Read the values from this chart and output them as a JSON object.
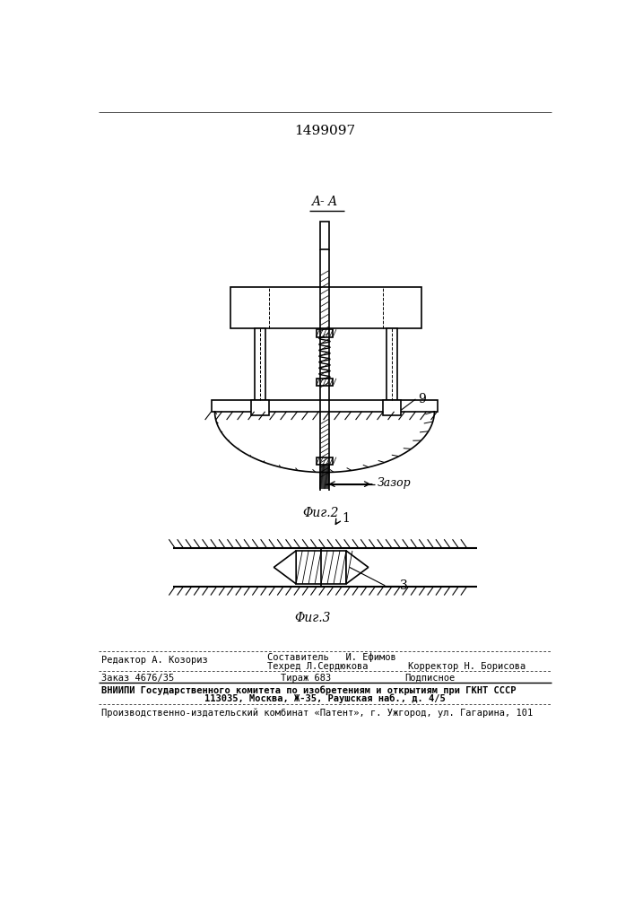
{
  "title": "1499097",
  "fig2_label": "Φиг.2",
  "fig3_label": "Φиг.3",
  "aa_label": "A- A",
  "zazor_label": "Зазор",
  "label_9": "9",
  "label_3": "3",
  "label_1": "1",
  "bg_color": "#ffffff",
  "line_color": "#000000",
  "footer_line1_left": "Редактор А. Козориз",
  "footer_line1_center": "Составитель   И. Ефимов",
  "footer_line2_center": "Техред Л.Сердюкова",
  "footer_line2_right": "Корректор Н. Борисова",
  "footer_line3_left": "Заказ 4676/35",
  "footer_line3_center": "Тираж 683",
  "footer_line3_right": "Подписное",
  "footer_line4": "ВНИИПИ Государственного комитета по изобретениям и открытиям при ГКНТ СССР",
  "footer_line5": "113035, Москва, Ж-35, Раушская наб., д. 4/5",
  "footer_line6": "Производственно-издательский комбинат «Патент», г. Ужгород, ул. Гагарина, 101"
}
